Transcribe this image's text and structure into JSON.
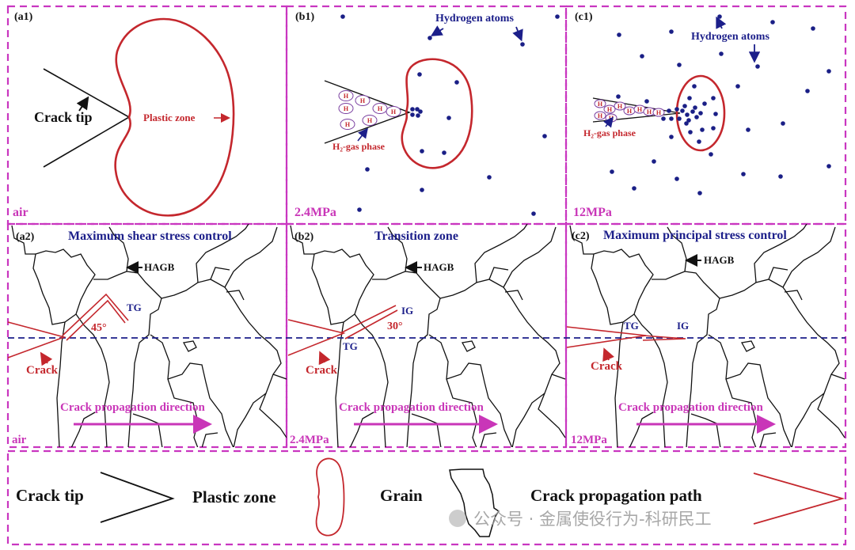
{
  "colors": {
    "frame": "#c936c0",
    "crack": "#c4272d",
    "hydrogen": "#1a1f86",
    "title": "#1c1f8a",
    "condition": "#c936b8"
  },
  "top_row": {
    "a1": {
      "tag": "(a1)",
      "condition": "air",
      "crack_tip": "Crack tip",
      "plastic_zone": "Plastic zone"
    },
    "b1": {
      "tag": "(b1)",
      "condition": "2.4MPa",
      "hydrogen_atoms": "Hydrogen atoms",
      "h2_gas": "H₂-gas phase",
      "h_symbol": "H"
    },
    "c1": {
      "tag": "(c1)",
      "condition": "12MPa",
      "hydrogen_atoms": "Hydrogen atoms",
      "h2_gas": "H₂-gas phase",
      "h_symbol": "H"
    }
  },
  "bottom_row": {
    "a2": {
      "tag": "(a2)",
      "title": "Maximum shear stress control",
      "hagb": "HAGB",
      "tg": "TG",
      "angle": "45°",
      "crack": "Crack",
      "direction": "Crack propagation direction",
      "condition": "air"
    },
    "b2": {
      "tag": "(b2)",
      "title": "Transition zone",
      "hagb": "HAGB",
      "tg": "TG",
      "ig": "IG",
      "angle": "30°",
      "crack": "Crack",
      "direction": "Crack propagation direction",
      "condition": "2.4MPa"
    },
    "c2": {
      "tag": "(c2)",
      "title": "Maximum principal stress control",
      "hagb": "HAGB",
      "tg": "TG",
      "ig": "IG",
      "crack": "Crack",
      "direction": "Crack propagation direction",
      "condition": "12MPa"
    }
  },
  "legend": {
    "crack_tip": "Crack tip",
    "plastic_zone": "Plastic zone",
    "grain": "Grain",
    "crack_path": "Crack propagation path"
  },
  "watermark": "公众号 · 金属使役行为-科研民工"
}
